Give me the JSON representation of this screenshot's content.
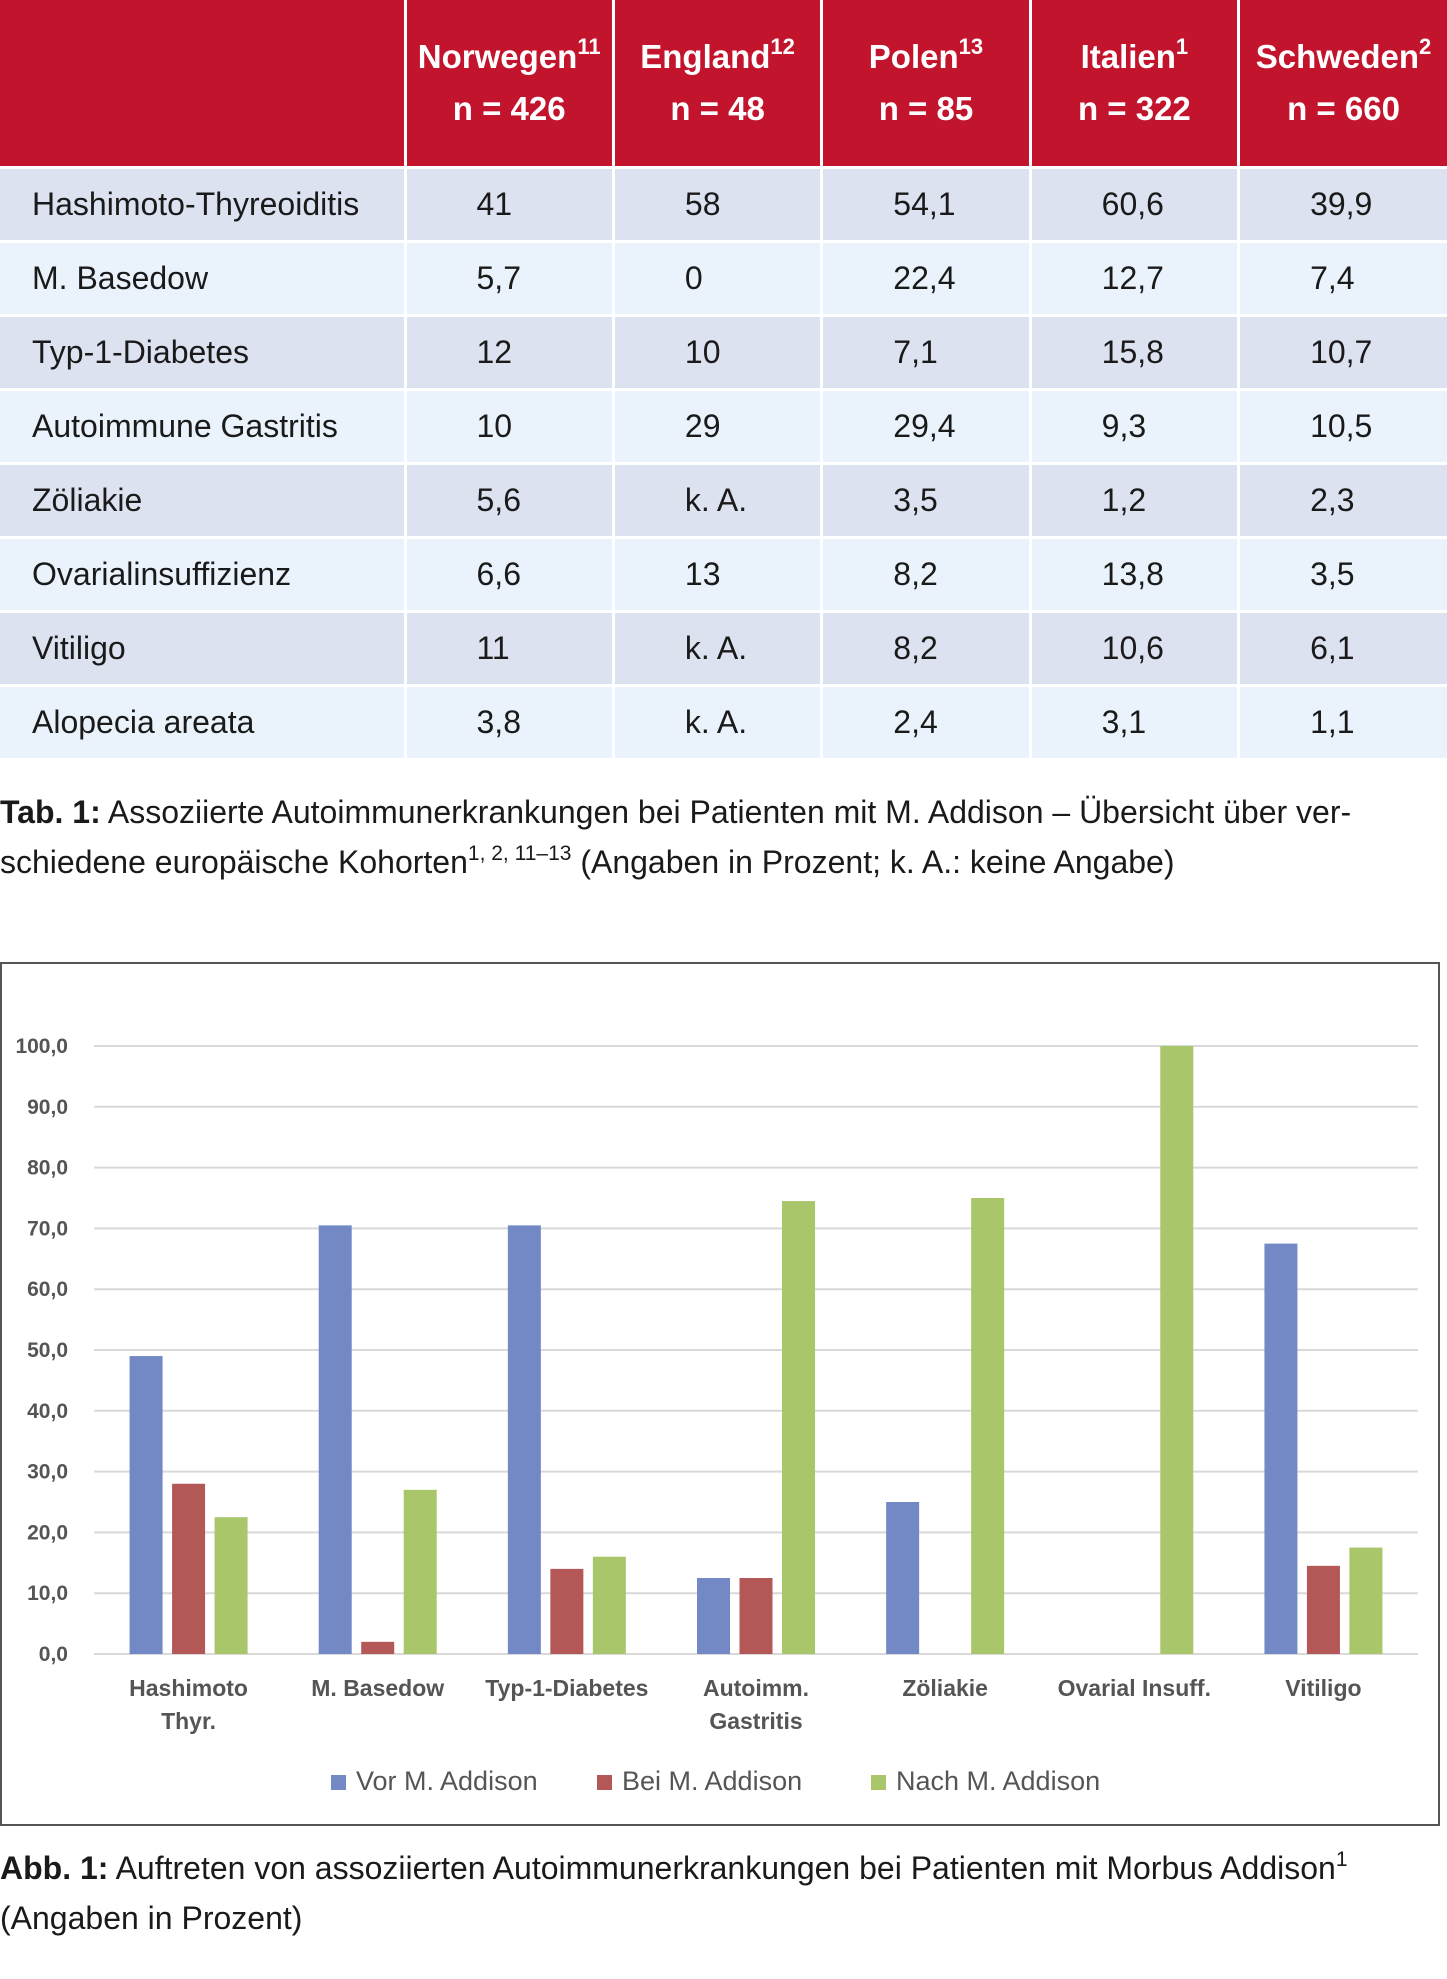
{
  "table": {
    "headers": [
      {
        "name": "Norwegen",
        "sup": "11",
        "n": "n = 426"
      },
      {
        "name": "England",
        "sup": "12",
        "n": "n = 48"
      },
      {
        "name": "Polen",
        "sup": "13",
        "n": "n = 85"
      },
      {
        "name": "Italien",
        "sup": "1",
        "n": "n = 322"
      },
      {
        "name": "Schweden",
        "sup": "2",
        "n": "n = 660"
      }
    ],
    "rows": [
      {
        "label": "Hashimoto-Thyreoiditis",
        "values": [
          "41",
          "58",
          "54,1",
          "60,6",
          "39,9"
        ]
      },
      {
        "label": "M. Basedow",
        "values": [
          "5,7",
          "0",
          "22,4",
          "12,7",
          "7,4"
        ]
      },
      {
        "label": "Typ-1-Diabetes",
        "values": [
          "12",
          "10",
          "7,1",
          "15,8",
          "10,7"
        ]
      },
      {
        "label": "Autoimmune Gastritis",
        "values": [
          "10",
          "29",
          "29,4",
          "9,3",
          "10,5"
        ]
      },
      {
        "label": "Zöliakie",
        "values": [
          "5,6",
          "k. A.",
          "3,5",
          "1,2",
          "2,3"
        ]
      },
      {
        "label": "Ovarialinsuffizienz",
        "values": [
          "6,6",
          "13",
          "8,2",
          "13,8",
          "3,5"
        ]
      },
      {
        "label": "Vitiligo",
        "values": [
          "11",
          "k. A.",
          "8,2",
          "10,6",
          "6,1"
        ]
      },
      {
        "label": "Alopecia areata",
        "values": [
          "3,8",
          "k. A.",
          "2,4",
          "3,1",
          "1,1"
        ]
      }
    ]
  },
  "caption_table": {
    "label": "Tab. 1:",
    "text_line1": " Assoziierte Autoimmunerkrankungen bei Patienten mit M. Addison – Übersicht über ver-",
    "text_line2": "schiedene europäische Kohorten",
    "refs": "1, 2, 11–13",
    "tail": " (Angaben in Prozent; k. A.: keine Angabe)"
  },
  "caption_figure": {
    "label": "Abb. 1:",
    "text": " Auftreten von assoziierten Autoimmunerkrankungen bei Patienten mit Morbus Addison",
    "ref": "1",
    "line2": "(Angaben in Prozent)"
  },
  "chart_data": {
    "type": "bar",
    "categories": [
      "Hashimoto Thyr.",
      "M. Basedow",
      "Typ-1-Diabetes",
      "Autoimm. Gastritis",
      "Zöliakie",
      "Ovarial Insuff.",
      "Vitiligo"
    ],
    "category_lines": [
      [
        "Hashimoto",
        "Thyr."
      ],
      [
        "M. Basedow"
      ],
      [
        "Typ-1-Diabetes"
      ],
      [
        "Autoimm.",
        "Gastritis"
      ],
      [
        "Zöliakie"
      ],
      [
        "Ovarial Insuff."
      ],
      [
        "Vitiligo"
      ]
    ],
    "series": [
      {
        "name": "Vor M. Addison",
        "color": "#7289c6",
        "values": [
          49,
          70.5,
          70.5,
          12.5,
          25,
          0,
          67.5
        ]
      },
      {
        "name": "Bei M. Addison",
        "color": "#b35757",
        "values": [
          28,
          2,
          14,
          12.5,
          0,
          0,
          14.5
        ]
      },
      {
        "name": "Nach M. Addison",
        "color": "#a9c66a",
        "values": [
          22.5,
          27,
          16,
          74.5,
          75,
          100,
          17.5
        ]
      }
    ],
    "yticks": [
      "0,0",
      "10,0",
      "20,0",
      "30,0",
      "40,0",
      "50,0",
      "60,0",
      "70,0",
      "80,0",
      "90,0",
      "100,0"
    ],
    "ylim": [
      0,
      100
    ],
    "grid": true,
    "legend_position": "bottom"
  }
}
